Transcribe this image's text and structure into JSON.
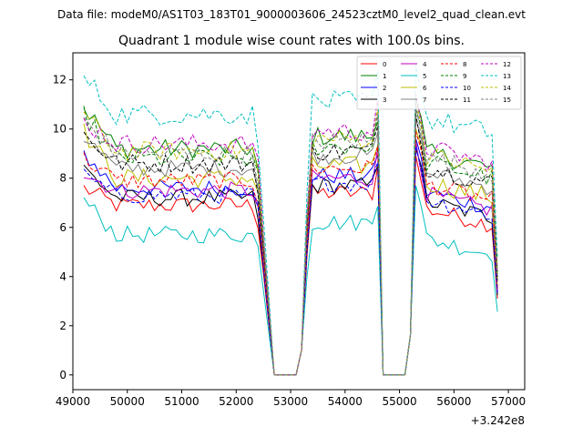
{
  "chart_data": {
    "type": "line",
    "suptitle": "Data file: modeM0/AS1T03_183T01_9000003606_24523cztM0_level2_quad_clean.evt",
    "title": "Quadrant 1 module wise count rates with 100.0s bins.",
    "xlabel": "",
    "ylabel": "",
    "x_offset_label": "+3.242e8",
    "xlim": [
      49000,
      57300
    ],
    "ylim": [
      -0.6,
      13.1
    ],
    "xticks": [
      49000,
      50000,
      51000,
      52000,
      53000,
      54000,
      55000,
      56000,
      57000
    ],
    "xtick_labels": [
      "49000",
      "50000",
      "51000",
      "52000",
      "53000",
      "54000",
      "55000",
      "56000",
      "57000"
    ],
    "yticks": [
      0,
      2,
      4,
      6,
      8,
      10,
      12
    ],
    "ytick_labels": [
      "0",
      "2",
      "4",
      "6",
      "8",
      "10",
      "12"
    ],
    "grid": false,
    "legend_position": "top-right",
    "segments": [
      {
        "start": 49200,
        "step": 100,
        "n": 34
      },
      {
        "start": 52700,
        "step": 100,
        "n": 5
      },
      {
        "start": 53200,
        "step": 100,
        "n": 15
      },
      {
        "start": 54700,
        "step": 100,
        "n": 5
      },
      {
        "start": 55200,
        "step": 100,
        "n": 17
      }
    ],
    "series": [
      {
        "name": "0",
        "color": "#ff0000",
        "dash": "solid",
        "level": 6.9,
        "start": 7.6,
        "jitter": 0.35
      },
      {
        "name": "1",
        "color": "#008000",
        "dash": "solid",
        "level": 9.2,
        "start": 10.9,
        "jitter": 0.4
      },
      {
        "name": "2",
        "color": "#0000ff",
        "dash": "solid",
        "level": 7.6,
        "start": 9.0,
        "jitter": 0.35
      },
      {
        "name": "3",
        "color": "#000000",
        "dash": "solid",
        "level": 7.2,
        "start": 8.4,
        "jitter": 0.35
      },
      {
        "name": "4",
        "color": "#bf00bf",
        "dash": "solid",
        "level": 7.5,
        "start": 8.2,
        "jitter": 0.35
      },
      {
        "name": "5",
        "color": "#00bfbf",
        "dash": "solid",
        "level": 5.7,
        "start": 7.1,
        "jitter": 0.35
      },
      {
        "name": "6",
        "color": "#bfbf00",
        "dash": "solid",
        "level": 8.0,
        "start": 9.9,
        "jitter": 0.4
      },
      {
        "name": "7",
        "color": "#808080",
        "dash": "solid",
        "level": 8.4,
        "start": 9.7,
        "jitter": 0.35
      },
      {
        "name": "8",
        "color": "#ff0000",
        "dash": "dashed",
        "level": 7.9,
        "start": 8.8,
        "jitter": 0.35
      },
      {
        "name": "9",
        "color": "#008000",
        "dash": "dashed",
        "level": 8.8,
        "start": 10.6,
        "jitter": 0.4
      },
      {
        "name": "10",
        "color": "#0000ff",
        "dash": "dashed",
        "level": 7.3,
        "start": 8.1,
        "jitter": 0.35
      },
      {
        "name": "11",
        "color": "#000000",
        "dash": "dashed",
        "level": 8.6,
        "start": 9.8,
        "jitter": 0.4
      },
      {
        "name": "12",
        "color": "#bf00bf",
        "dash": "dashed",
        "level": 9.4,
        "start": 10.3,
        "jitter": 0.4
      },
      {
        "name": "13",
        "color": "#00bfbf",
        "dash": "dashed",
        "level": 10.6,
        "start": 12.1,
        "jitter": 0.45
      },
      {
        "name": "14",
        "color": "#bfbf00",
        "dash": "dashed",
        "level": 9.1,
        "start": 10.6,
        "jitter": 0.4
      },
      {
        "name": "15",
        "color": "#808080",
        "dash": "dashed",
        "level": 9.0,
        "start": 10.4,
        "jitter": 0.4
      }
    ]
  }
}
